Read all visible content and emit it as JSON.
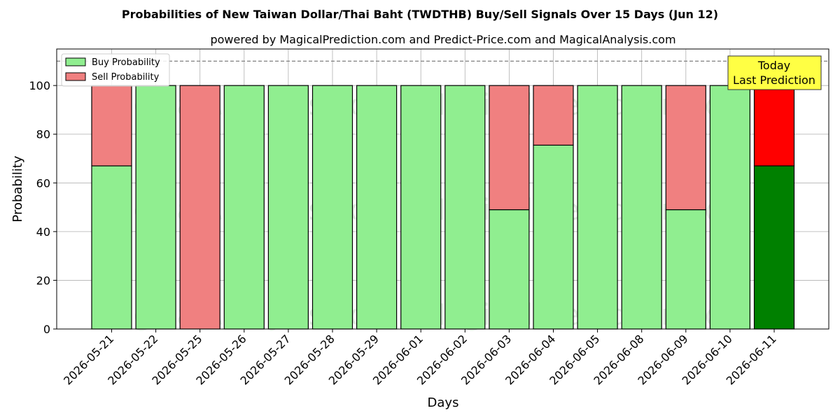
{
  "chart_data": {
    "type": "bar",
    "stacked": true,
    "title": "Probabilities of New Taiwan Dollar/Thai Baht (TWDTHB) Buy/Sell Signals Over 15 Days (Jun 12)",
    "subtitle": "powered by MagicalPrediction.com and Predict-Price.com and MagicalAnalysis.com",
    "xlabel": "Days",
    "ylabel": "Probability",
    "ylim": [
      0,
      115
    ],
    "yticks": [
      0,
      20,
      40,
      60,
      80,
      100
    ],
    "grid": true,
    "legend_position": "top-left",
    "reference_line": 110,
    "categories": [
      "2026-05-21",
      "2026-05-22",
      "2026-05-25",
      "2026-05-26",
      "2026-05-27",
      "2026-05-28",
      "2026-05-29",
      "2026-06-01",
      "2026-06-02",
      "2026-06-03",
      "2026-06-04",
      "2026-06-05",
      "2026-06-08",
      "2026-06-09",
      "2026-06-10",
      "2026-06-11"
    ],
    "series": [
      {
        "name": "Buy Probability",
        "color": "#90ee90",
        "values": [
          67,
          100,
          0,
          100,
          100,
          100,
          100,
          100,
          100,
          49,
          75.5,
          100,
          100,
          49,
          100,
          67
        ]
      },
      {
        "name": "Sell Probability",
        "color": "#f08080",
        "values": [
          33,
          0,
          100,
          0,
          0,
          0,
          0,
          0,
          0,
          51,
          24.5,
          0,
          0,
          51,
          0,
          33
        ]
      }
    ],
    "highlight": {
      "index": 15,
      "buy_color": "#008000",
      "sell_color": "#ff0000"
    },
    "annotation": {
      "lines": [
        "Today",
        "Last Prediction"
      ],
      "background": "#ffff44"
    },
    "watermarks": [
      "MagicalAnalysis.com",
      "MagicalPrediction.com"
    ]
  }
}
